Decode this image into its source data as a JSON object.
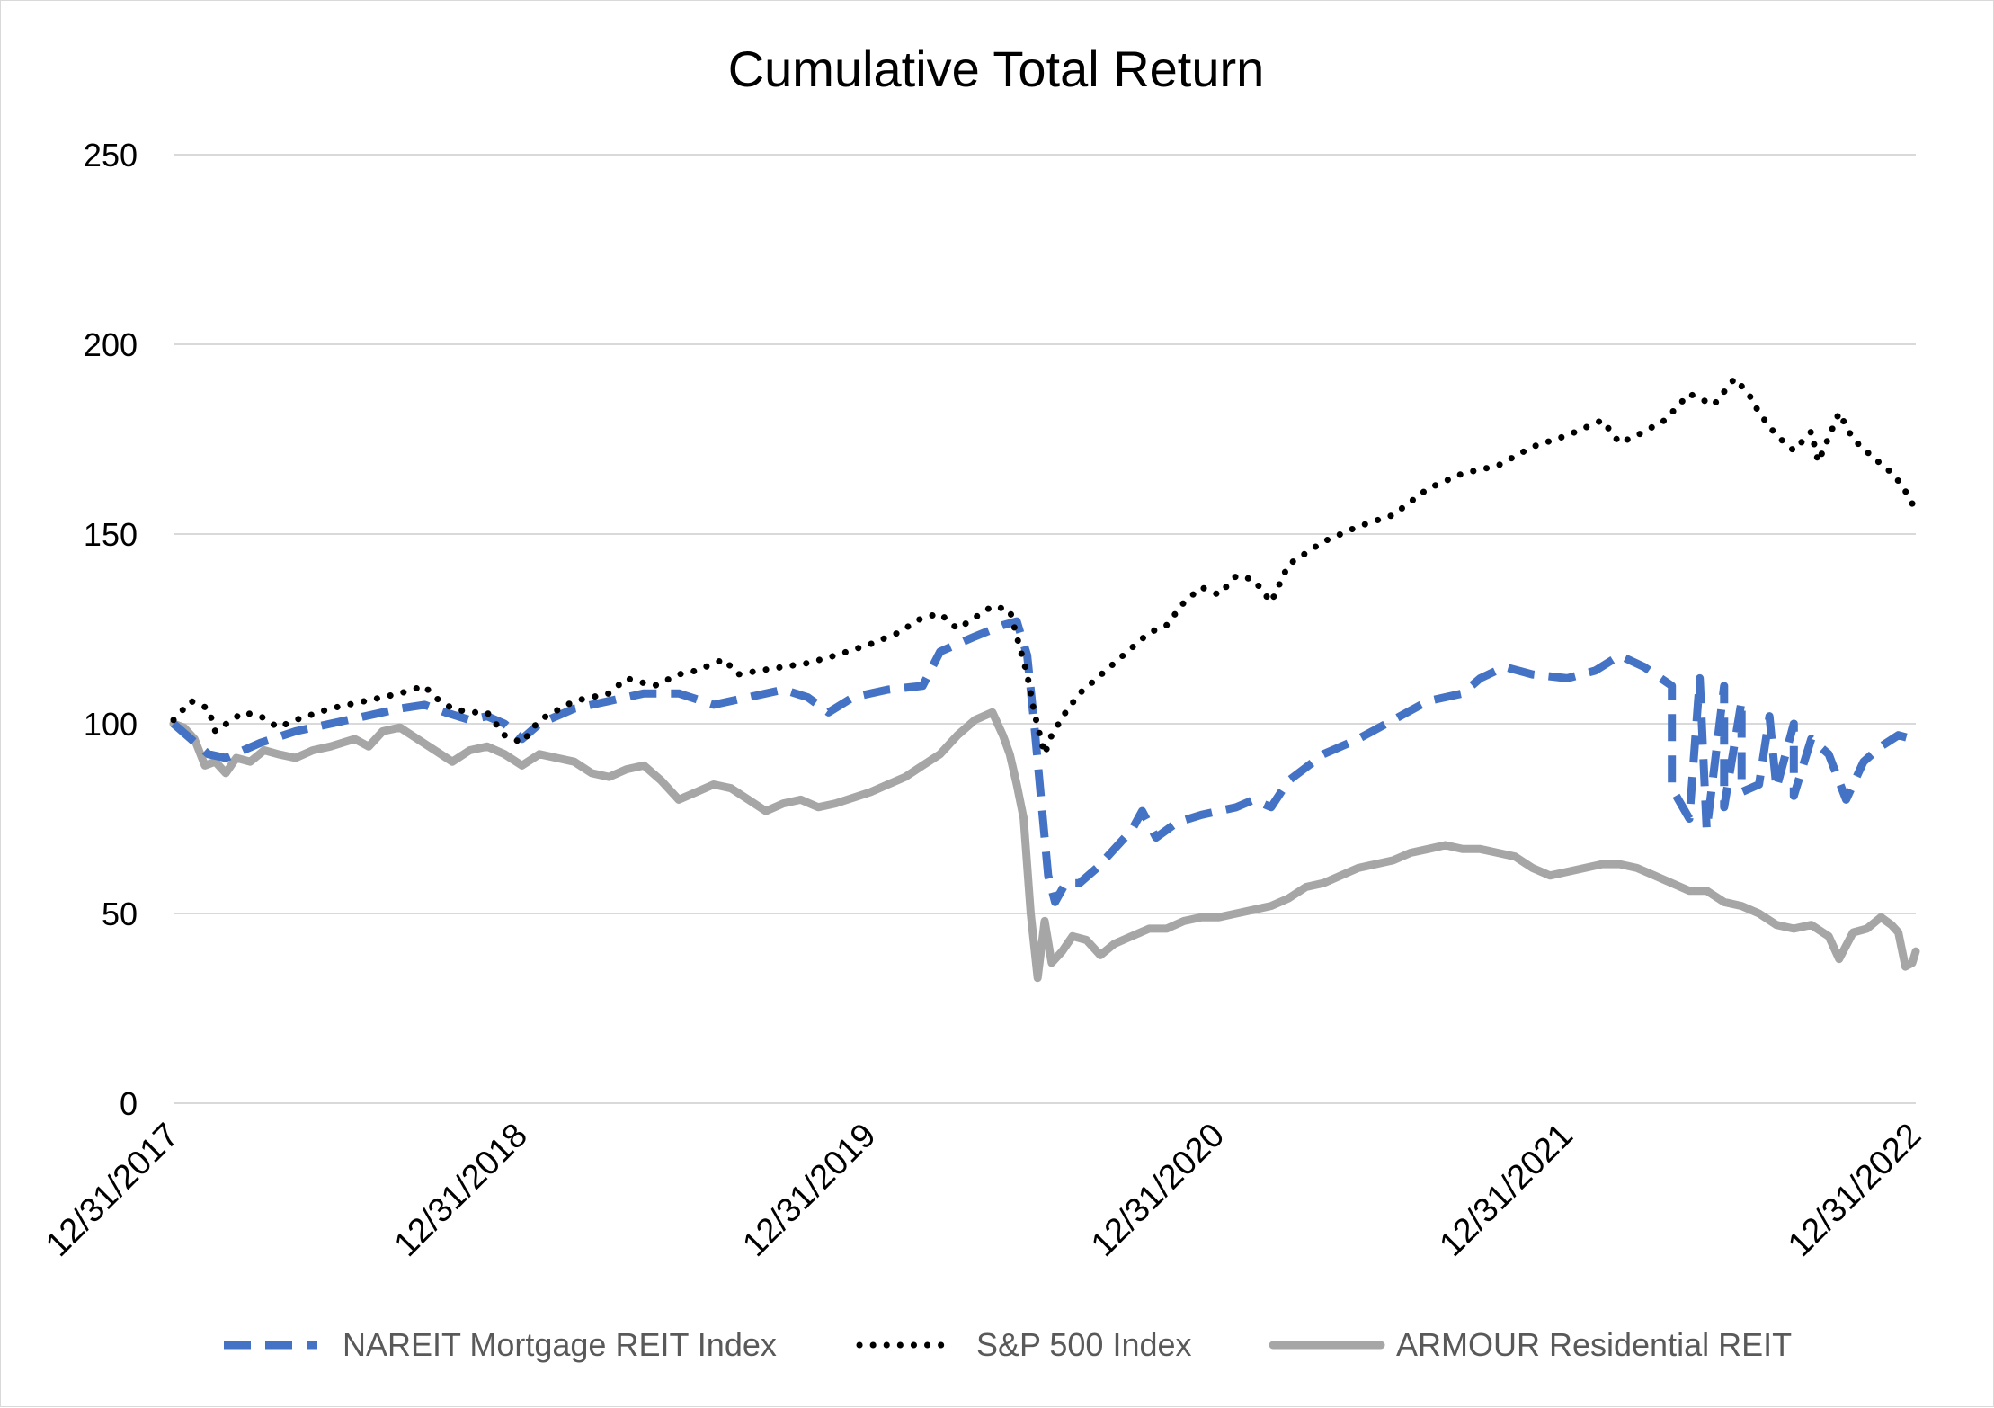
{
  "chart_data": {
    "type": "line",
    "title": "Cumulative Total Return",
    "xlabel": "",
    "ylabel": "",
    "ylim": [
      0,
      250
    ],
    "yticks": [
      0,
      50,
      100,
      150,
      200,
      250
    ],
    "xlim": [
      2018.0,
      2023.0
    ],
    "xtick_labels": [
      "12/31/2017",
      "12/31/2018",
      "12/31/2019",
      "12/31/2020",
      "12/31/2021",
      "12/31/2022"
    ],
    "grid": true,
    "legend_position": "bottom",
    "series": [
      {
        "name": "NAREIT Mortgage REIT Index",
        "color": "#4472c4",
        "style": "dashed",
        "points": [
          [
            2018.0,
            100
          ],
          [
            2018.05,
            96
          ],
          [
            2018.1,
            92
          ],
          [
            2018.15,
            91
          ],
          [
            2018.25,
            95
          ],
          [
            2018.35,
            98
          ],
          [
            2018.45,
            100
          ],
          [
            2018.55,
            102
          ],
          [
            2018.65,
            104
          ],
          [
            2018.72,
            105
          ],
          [
            2018.78,
            103
          ],
          [
            2018.85,
            101
          ],
          [
            2018.9,
            102
          ],
          [
            2018.95,
            100
          ],
          [
            2019.0,
            96
          ],
          [
            2019.05,
            100
          ],
          [
            2019.15,
            104
          ],
          [
            2019.25,
            106
          ],
          [
            2019.35,
            108
          ],
          [
            2019.45,
            108
          ],
          [
            2019.55,
            105
          ],
          [
            2019.65,
            107
          ],
          [
            2019.75,
            109
          ],
          [
            2019.82,
            107
          ],
          [
            2019.88,
            103
          ],
          [
            2019.95,
            107
          ],
          [
            2020.05,
            109
          ],
          [
            2020.15,
            110
          ],
          [
            2020.2,
            119
          ],
          [
            2020.3,
            123
          ],
          [
            2020.38,
            126
          ],
          [
            2020.42,
            127
          ],
          [
            2020.45,
            118
          ],
          [
            2020.47,
            100
          ],
          [
            2020.49,
            80
          ],
          [
            2020.51,
            60
          ],
          [
            2020.53,
            53
          ],
          [
            2020.56,
            58
          ],
          [
            2020.6,
            58
          ],
          [
            2020.65,
            62
          ],
          [
            2020.7,
            67
          ],
          [
            2020.75,
            72
          ],
          [
            2020.78,
            77
          ],
          [
            2020.82,
            70
          ],
          [
            2020.88,
            74
          ],
          [
            2020.95,
            76
          ],
          [
            2021.05,
            78
          ],
          [
            2021.1,
            80
          ],
          [
            2021.15,
            78
          ],
          [
            2021.2,
            85
          ],
          [
            2021.3,
            92
          ],
          [
            2021.4,
            96
          ],
          [
            2021.5,
            101
          ],
          [
            2021.6,
            106
          ],
          [
            2021.7,
            108
          ],
          [
            2021.75,
            112
          ],
          [
            2021.82,
            115
          ],
          [
            2021.9,
            113
          ],
          [
            2022.0,
            112
          ],
          [
            2022.08,
            114
          ],
          [
            2022.15,
            118
          ],
          [
            2022.22,
            115
          ],
          [
            2022.3,
            110
          ],
          [
            2022.38,
            112
          ],
          [
            2022.45,
            110
          ],
          [
            2022.5,
            106
          ],
          [
            2022.58,
            102
          ],
          [
            2022.65,
            100
          ],
          [
            2022.7,
            96
          ],
          [
            2022.75,
            92
          ],
          [
            2022.8,
            80
          ],
          [
            2022.85,
            90
          ],
          [
            2022.9,
            94
          ],
          [
            2022.95,
            97
          ],
          [
            2022.99,
            96
          ],
          [
            2022.3,
            83
          ],
          [
            2022.35,
            75
          ],
          [
            2022.4,
            72
          ],
          [
            2022.45,
            78
          ],
          [
            2022.5,
            82
          ],
          [
            2022.55,
            84
          ],
          [
            2022.6,
            83
          ],
          [
            2022.65,
            81
          ]
        ]
      },
      {
        "name": "S&P 500 Index",
        "color": "#000000",
        "style": "dotted",
        "points": [
          [
            2018.0,
            101
          ],
          [
            2018.05,
            106
          ],
          [
            2018.1,
            104
          ],
          [
            2018.12,
            98
          ],
          [
            2018.2,
            103
          ],
          [
            2018.25,
            102
          ],
          [
            2018.3,
            99
          ],
          [
            2018.35,
            101
          ],
          [
            2018.45,
            104
          ],
          [
            2018.55,
            106
          ],
          [
            2018.65,
            108
          ],
          [
            2018.72,
            110
          ],
          [
            2018.75,
            107
          ],
          [
            2018.8,
            104
          ],
          [
            2018.85,
            103
          ],
          [
            2018.9,
            103
          ],
          [
            2018.95,
            97
          ],
          [
            2019.0,
            95
          ],
          [
            2019.05,
            101
          ],
          [
            2019.15,
            106
          ],
          [
            2019.25,
            108
          ],
          [
            2019.3,
            112
          ],
          [
            2019.38,
            110
          ],
          [
            2019.45,
            113
          ],
          [
            2019.5,
            114
          ],
          [
            2019.58,
            117
          ],
          [
            2019.62,
            113
          ],
          [
            2019.68,
            114
          ],
          [
            2019.75,
            115
          ],
          [
            2019.82,
            116
          ],
          [
            2019.9,
            118
          ],
          [
            2020.0,
            121
          ],
          [
            2020.08,
            124
          ],
          [
            2020.15,
            128
          ],
          [
            2020.2,
            129
          ],
          [
            2020.25,
            125
          ],
          [
            2020.3,
            128
          ],
          [
            2020.35,
            131
          ],
          [
            2020.4,
            130
          ],
          [
            2020.42,
            123
          ],
          [
            2020.45,
            113
          ],
          [
            2020.47,
            103
          ],
          [
            2020.5,
            92
          ],
          [
            2020.52,
            97
          ],
          [
            2020.56,
            103
          ],
          [
            2020.6,
            108
          ],
          [
            2020.65,
            112
          ],
          [
            2020.7,
            116
          ],
          [
            2020.75,
            120
          ],
          [
            2020.8,
            124
          ],
          [
            2020.85,
            126
          ],
          [
            2020.9,
            132
          ],
          [
            2020.95,
            136
          ],
          [
            2021.0,
            134
          ],
          [
            2021.05,
            139
          ],
          [
            2021.1,
            138
          ],
          [
            2021.15,
            132
          ],
          [
            2021.2,
            142
          ],
          [
            2021.3,
            148
          ],
          [
            2021.4,
            152
          ],
          [
            2021.5,
            155
          ],
          [
            2021.6,
            162
          ],
          [
            2021.7,
            166
          ],
          [
            2021.8,
            168
          ],
          [
            2021.9,
            173
          ],
          [
            2022.0,
            176
          ],
          [
            2022.1,
            180
          ],
          [
            2022.15,
            174
          ],
          [
            2022.2,
            176
          ],
          [
            2022.28,
            180
          ],
          [
            2022.35,
            187
          ],
          [
            2022.42,
            184
          ],
          [
            2022.48,
            191
          ],
          [
            2022.52,
            187
          ],
          [
            2022.55,
            182
          ],
          [
            2022.6,
            176
          ],
          [
            2022.65,
            172
          ],
          [
            2022.7,
            177
          ],
          [
            2022.72,
            169
          ],
          [
            2022.78,
            182
          ],
          [
            2022.82,
            175
          ],
          [
            2022.88,
            170
          ],
          [
            2022.92,
            167
          ],
          [
            2022.96,
            163
          ],
          [
            2022.99,
            158
          ],
          [
            2023.0,
            155
          ]
        ]
      },
      {
        "name": "ARMOUR Residential REIT",
        "color": "#a6a6a6",
        "style": "solid",
        "points": [
          [
            2018.0,
            100
          ],
          [
            2018.03,
            99
          ],
          [
            2018.06,
            96
          ],
          [
            2018.09,
            89
          ],
          [
            2018.12,
            90
          ],
          [
            2018.15,
            87
          ],
          [
            2018.18,
            91
          ],
          [
            2018.22,
            90
          ],
          [
            2018.26,
            93
          ],
          [
            2018.3,
            92
          ],
          [
            2018.35,
            91
          ],
          [
            2018.4,
            93
          ],
          [
            2018.45,
            94
          ],
          [
            2018.52,
            96
          ],
          [
            2018.56,
            94
          ],
          [
            2018.6,
            98
          ],
          [
            2018.65,
            99
          ],
          [
            2018.7,
            96
          ],
          [
            2018.75,
            93
          ],
          [
            2018.8,
            90
          ],
          [
            2018.85,
            93
          ],
          [
            2018.9,
            94
          ],
          [
            2018.95,
            92
          ],
          [
            2019.0,
            89
          ],
          [
            2019.05,
            92
          ],
          [
            2019.1,
            91
          ],
          [
            2019.15,
            90
          ],
          [
            2019.2,
            87
          ],
          [
            2019.25,
            86
          ],
          [
            2019.3,
            88
          ],
          [
            2019.35,
            89
          ],
          [
            2019.4,
            85
          ],
          [
            2019.45,
            80
          ],
          [
            2019.5,
            82
          ],
          [
            2019.55,
            84
          ],
          [
            2019.6,
            83
          ],
          [
            2019.65,
            80
          ],
          [
            2019.7,
            77
          ],
          [
            2019.75,
            79
          ],
          [
            2019.8,
            80
          ],
          [
            2019.85,
            78
          ],
          [
            2019.9,
            79
          ],
          [
            2020.0,
            82
          ],
          [
            2020.05,
            84
          ],
          [
            2020.1,
            86
          ],
          [
            2020.15,
            89
          ],
          [
            2020.2,
            92
          ],
          [
            2020.25,
            97
          ],
          [
            2020.3,
            101
          ],
          [
            2020.35,
            103
          ],
          [
            2020.38,
            97
          ],
          [
            2020.4,
            92
          ],
          [
            2020.42,
            84
          ],
          [
            2020.44,
            75
          ],
          [
            2020.46,
            50
          ],
          [
            2020.48,
            33
          ],
          [
            2020.5,
            48
          ],
          [
            2020.52,
            37
          ],
          [
            2020.55,
            40
          ],
          [
            2020.58,
            44
          ],
          [
            2020.62,
            43
          ],
          [
            2020.66,
            39
          ],
          [
            2020.7,
            42
          ],
          [
            2020.75,
            44
          ],
          [
            2020.8,
            46
          ],
          [
            2020.85,
            46
          ],
          [
            2020.9,
            48
          ],
          [
            2020.95,
            49
          ],
          [
            2021.0,
            49
          ],
          [
            2021.05,
            50
          ],
          [
            2021.1,
            51
          ],
          [
            2021.15,
            52
          ],
          [
            2021.2,
            54
          ],
          [
            2021.25,
            57
          ],
          [
            2021.3,
            58
          ],
          [
            2021.35,
            60
          ],
          [
            2021.4,
            62
          ],
          [
            2021.45,
            63
          ],
          [
            2021.5,
            64
          ],
          [
            2021.55,
            66
          ],
          [
            2021.6,
            67
          ],
          [
            2021.65,
            68
          ],
          [
            2021.7,
            67
          ],
          [
            2021.75,
            67
          ],
          [
            2021.8,
            66
          ],
          [
            2021.85,
            65
          ],
          [
            2021.9,
            62
          ],
          [
            2021.95,
            60
          ],
          [
            2022.0,
            61
          ],
          [
            2022.05,
            62
          ],
          [
            2022.1,
            63
          ],
          [
            2022.15,
            63
          ],
          [
            2022.2,
            62
          ],
          [
            2022.25,
            60
          ],
          [
            2022.3,
            58
          ],
          [
            2022.35,
            56
          ],
          [
            2022.4,
            56
          ],
          [
            2022.45,
            53
          ],
          [
            2022.5,
            52
          ],
          [
            2022.55,
            50
          ],
          [
            2022.6,
            47
          ],
          [
            2022.65,
            46
          ],
          [
            2022.7,
            47
          ],
          [
            2022.75,
            44
          ],
          [
            2022.78,
            38
          ],
          [
            2022.82,
            45
          ],
          [
            2022.86,
            46
          ],
          [
            2022.9,
            49
          ],
          [
            2022.93,
            47
          ],
          [
            2022.95,
            45
          ],
          [
            2022.97,
            36
          ],
          [
            2022.99,
            37
          ],
          [
            2023.0,
            40
          ]
        ]
      }
    ]
  }
}
